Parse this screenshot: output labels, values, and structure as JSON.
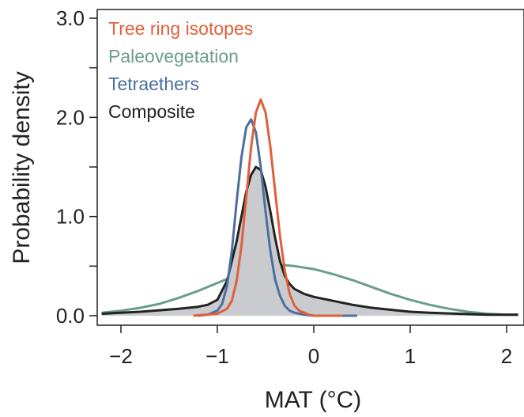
{
  "chart_data": {
    "type": "area",
    "xlabel": "MAT (°C)",
    "ylabel": "Probability density",
    "xlim": [
      -2.18,
      2.12
    ],
    "ylim": [
      0,
      3.0
    ],
    "x_ticks": [
      -2,
      -1,
      0,
      1,
      2
    ],
    "x_tick_labels": [
      "−2",
      "−1",
      "0",
      "1",
      "2"
    ],
    "y_ticks": [
      0.0,
      0.5,
      1.0,
      1.5,
      2.0,
      2.5,
      3.0
    ],
    "y_tick_labels": [
      "0.0",
      "",
      "1.0",
      "",
      "2.0",
      "",
      "3.0"
    ],
    "grid": false,
    "legend_position": "top-left",
    "series": [
      {
        "name": "Paleovegetation",
        "color": "#6a9e8a",
        "fill": false,
        "x": [
          -2.2,
          -2.0,
          -1.8,
          -1.6,
          -1.4,
          -1.2,
          -1.0,
          -0.8,
          -0.6,
          -0.4,
          -0.3,
          -0.2,
          0.0,
          0.2,
          0.4,
          0.6,
          0.8,
          1.0,
          1.2,
          1.4,
          1.6,
          1.8,
          2.0,
          2.12
        ],
        "values": [
          0.03,
          0.05,
          0.08,
          0.12,
          0.18,
          0.25,
          0.33,
          0.41,
          0.47,
          0.5,
          0.51,
          0.5,
          0.47,
          0.42,
          0.36,
          0.29,
          0.22,
          0.16,
          0.11,
          0.07,
          0.04,
          0.02,
          0.01,
          0.01
        ]
      },
      {
        "name": "Composite",
        "color": "#222222",
        "fill": true,
        "fill_color": "#c9cbcf",
        "x": [
          -2.2,
          -1.8,
          -1.4,
          -1.2,
          -1.1,
          -1.0,
          -0.9,
          -0.8,
          -0.75,
          -0.7,
          -0.65,
          -0.6,
          -0.55,
          -0.5,
          -0.45,
          -0.4,
          -0.35,
          -0.3,
          -0.25,
          -0.2,
          -0.1,
          0.0,
          0.2,
          0.4,
          0.6,
          0.8,
          1.0,
          1.2,
          1.5,
          1.8,
          2.12
        ],
        "values": [
          0.02,
          0.04,
          0.07,
          0.09,
          0.11,
          0.16,
          0.35,
          0.75,
          1.0,
          1.25,
          1.42,
          1.5,
          1.47,
          1.3,
          1.05,
          0.78,
          0.55,
          0.4,
          0.32,
          0.27,
          0.22,
          0.19,
          0.15,
          0.11,
          0.08,
          0.06,
          0.04,
          0.03,
          0.02,
          0.01,
          0.01
        ]
      },
      {
        "name": "Tetraethers",
        "color": "#4a6fa0",
        "fill": false,
        "x": [
          -1.2,
          -1.1,
          -1.0,
          -0.95,
          -0.9,
          -0.85,
          -0.8,
          -0.75,
          -0.7,
          -0.65,
          -0.6,
          -0.55,
          -0.5,
          -0.45,
          -0.4,
          -0.35,
          -0.3,
          -0.25,
          -0.2,
          -0.1,
          0.0,
          0.2,
          0.45
        ],
        "values": [
          0.0,
          0.01,
          0.05,
          0.12,
          0.3,
          0.65,
          1.15,
          1.6,
          1.9,
          1.98,
          1.85,
          1.5,
          1.05,
          0.65,
          0.36,
          0.2,
          0.1,
          0.05,
          0.03,
          0.01,
          0.0,
          0.0,
          0.0
        ]
      },
      {
        "name": "Tree ring isotopes",
        "color": "#e0603a",
        "fill": false,
        "x": [
          -1.25,
          -1.0,
          -0.9,
          -0.85,
          -0.8,
          -0.75,
          -0.7,
          -0.65,
          -0.6,
          -0.55,
          -0.5,
          -0.45,
          -0.4,
          -0.35,
          -0.3,
          -0.25,
          -0.2,
          -0.15,
          -0.1,
          -0.05,
          0.0,
          0.2,
          0.3
        ],
        "values": [
          0.0,
          0.02,
          0.07,
          0.15,
          0.35,
          0.7,
          1.2,
          1.7,
          2.05,
          2.18,
          2.05,
          1.7,
          1.25,
          0.8,
          0.45,
          0.22,
          0.1,
          0.05,
          0.03,
          0.01,
          0.0,
          0.0,
          0.0
        ]
      }
    ]
  }
}
